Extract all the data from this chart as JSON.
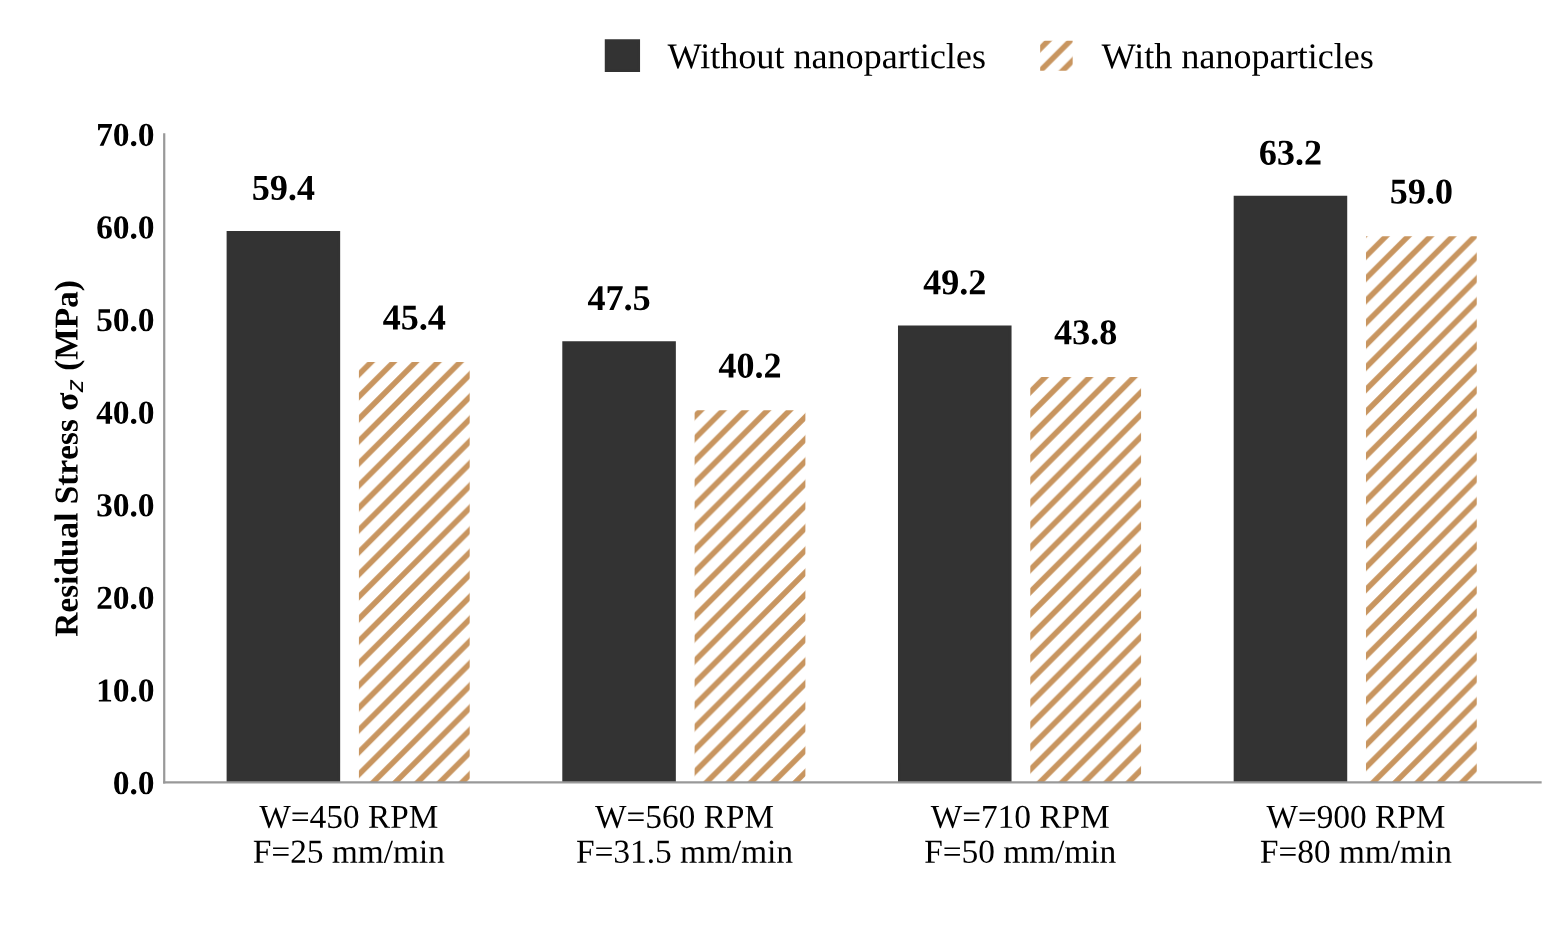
{
  "chart_data": {
    "type": "bar",
    "ylabel": "Residual Stress σ$_{z}$ (MPa)",
    "categories": [
      "W=450 RPM\nF=25 mm/min",
      "W=560 RPM\nF=31.5 mm/min",
      "W=710 RPM\nF=50 mm/min",
      "W=900 RPM\nF=80 mm/min"
    ],
    "series": [
      {
        "name": "Without nanoparticles",
        "color": "#333333",
        "values": [
          59.4,
          47.5,
          49.2,
          63.2
        ],
        "value_labels": [
          "59.4",
          "47.5",
          "49.2",
          "63.2"
        ]
      },
      {
        "name": "With nanoparticles",
        "color": "#c8955f",
        "values": [
          45.4,
          40.2,
          43.8,
          59.0
        ],
        "value_labels": [
          "45.4",
          "40.2",
          "43.8",
          "59.0"
        ]
      }
    ],
    "ylim": [
      0,
      70
    ],
    "yticks": [
      {
        "value": 0,
        "label": "0.0"
      },
      {
        "value": 10,
        "label": "10.0"
      },
      {
        "value": 20,
        "label": "20.0"
      },
      {
        "value": 30,
        "label": "30.0"
      },
      {
        "value": 40,
        "label": "40.0"
      },
      {
        "value": 50,
        "label": "50.0"
      },
      {
        "value": 60,
        "label": "60.0"
      },
      {
        "value": 70,
        "label": "70.0"
      }
    ],
    "grid": false,
    "legend": "top"
  }
}
